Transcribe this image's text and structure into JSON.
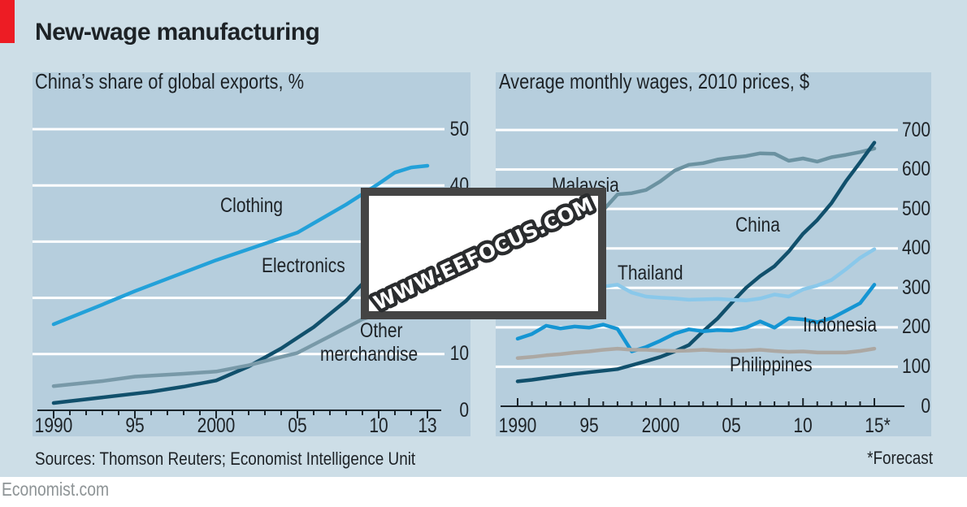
{
  "header": {
    "title": "New-wage manufacturing"
  },
  "watermark": {
    "text": "WWW.EEFOCUS.COM"
  },
  "footer": {
    "sources": "Sources: Thomson Reuters; Economist Intelligence Unit",
    "forecast_note": "*Forecast",
    "site": "Economist.com"
  },
  "colors": {
    "brand_red": "#ed1c24",
    "page_background": "#cddee7",
    "plot_background": "#b6cedd",
    "grid": "#ffffff",
    "axis": "#1a242a",
    "text_dark": "#1d2226",
    "text_gray": "#8e9496",
    "watermark_border": "rgba(5,5,5,0.75)",
    "watermark_outline": "#2a2c2e"
  },
  "chart_data": [
    {
      "type": "line",
      "title": "China’s share of global exports, %",
      "xlabel": "",
      "ylabel": "%",
      "xlim": [
        1988.9,
        2013.9
      ],
      "ylim": [
        0,
        50
      ],
      "grid": true,
      "legend": "inline-labels",
      "xticks": [
        {
          "label": "1990",
          "year": 1990
        },
        {
          "label": "95",
          "year": 1995
        },
        {
          "label": "2000",
          "year": 2000
        },
        {
          "label": "05",
          "year": 2005
        },
        {
          "label": "10",
          "year": 2010
        },
        {
          "label": "13",
          "year": 2013
        }
      ],
      "yticks": [
        0,
        10,
        20,
        30,
        40,
        50
      ],
      "series": [
        {
          "name": "Clothing",
          "color": "#23a1d9",
          "points": [
            [
              1990,
              15.3
            ],
            [
              1993,
              18.8
            ],
            [
              1995,
              21.2
            ],
            [
              2000,
              26.7
            ],
            [
              2005,
              31.6
            ],
            [
              2008,
              36.6
            ],
            [
              2010,
              40.3
            ],
            [
              2011,
              42.3
            ],
            [
              2012,
              43.2
            ],
            [
              2013,
              43.5
            ]
          ]
        },
        {
          "name": "Electronics",
          "color": "#11506c",
          "points": [
            [
              1990,
              1.3
            ],
            [
              1993,
              2.3
            ],
            [
              1996,
              3.3
            ],
            [
              1998,
              4.2
            ],
            [
              2000,
              5.3
            ],
            [
              2002,
              7.8
            ],
            [
              2004,
              11.0
            ],
            [
              2006,
              14.8
            ],
            [
              2008,
              19.5
            ],
            [
              2009,
              22.5
            ],
            [
              2011,
              28.5
            ],
            [
              2013,
              36.0
            ]
          ]
        },
        {
          "name": "Other merchandise",
          "color": "#7899a8",
          "points": [
            [
              1990,
              4.3
            ],
            [
              1993,
              5.2
            ],
            [
              1995,
              6.0
            ],
            [
              1998,
              6.5
            ],
            [
              2000,
              6.9
            ],
            [
              2002,
              8.0
            ],
            [
              2004,
              9.5
            ],
            [
              2005,
              10.2
            ],
            [
              2007,
              13.2
            ],
            [
              2009,
              16.2
            ],
            [
              2011,
              18.0
            ],
            [
              2013,
              19.5
            ]
          ]
        }
      ]
    },
    {
      "type": "line",
      "title": "Average monthly wages, 2010 prices, $",
      "xlabel": "",
      "ylabel": "$",
      "xlim": [
        1988.8,
        2017.0
      ],
      "ylim": [
        0,
        700
      ],
      "grid": true,
      "legend": "inline-labels",
      "forecast_year": 2015,
      "xticks": [
        {
          "label": "1990",
          "year": 1990
        },
        {
          "label": "95",
          "year": 1995
        },
        {
          "label": "2000",
          "year": 2000
        },
        {
          "label": "05",
          "year": 2005
        },
        {
          "label": "10",
          "year": 2010
        },
        {
          "label": "15*",
          "year": 2015
        }
      ],
      "yticks": [
        0,
        100,
        200,
        300,
        400,
        500,
        600,
        700
      ],
      "series": [
        {
          "name": "Malaysia",
          "color": "#6b92a1",
          "points": [
            [
              1990,
              450
            ],
            [
              1992,
              465
            ],
            [
              1994,
              482
            ],
            [
              1996,
              497
            ],
            [
              1997,
              537
            ],
            [
              1998,
              540
            ],
            [
              1999,
              548
            ],
            [
              2000,
              570
            ],
            [
              2001,
              597
            ],
            [
              2002,
              612
            ],
            [
              2003,
              616
            ],
            [
              2004,
              625
            ],
            [
              2005,
              630
            ],
            [
              2006,
              634
            ],
            [
              2007,
              641
            ],
            [
              2008,
              640
            ],
            [
              2009,
              622
            ],
            [
              2010,
              628
            ],
            [
              2011,
              620
            ],
            [
              2012,
              631
            ],
            [
              2013,
              637
            ],
            [
              2014,
              644
            ],
            [
              2015,
              653
            ]
          ]
        },
        {
          "name": "China",
          "color": "#11506c",
          "points": [
            [
              1990,
              63
            ],
            [
              1991,
              67
            ],
            [
              1992,
              72
            ],
            [
              1993,
              77
            ],
            [
              1994,
              82
            ],
            [
              1995,
              86
            ],
            [
              1996,
              90
            ],
            [
              1997,
              94
            ],
            [
              1998,
              104
            ],
            [
              1999,
              114
            ],
            [
              2000,
              125
            ],
            [
              2001,
              139
            ],
            [
              2002,
              155
            ],
            [
              2003,
              190
            ],
            [
              2004,
              222
            ],
            [
              2005,
              262
            ],
            [
              2006,
              300
            ],
            [
              2007,
              330
            ],
            [
              2008,
              355
            ],
            [
              2009,
              392
            ],
            [
              2010,
              437
            ],
            [
              2011,
              472
            ],
            [
              2012,
              515
            ],
            [
              2013,
              570
            ],
            [
              2014,
              618
            ],
            [
              2015,
              668
            ]
          ]
        },
        {
          "name": "Thailand",
          "color": "#8ac8ea",
          "points": [
            [
              1990,
              258
            ],
            [
              1992,
              275
            ],
            [
              1994,
              290
            ],
            [
              1996,
              303
            ],
            [
              1997,
              308
            ],
            [
              1998,
              288
            ],
            [
              1999,
              278
            ],
            [
              2000,
              275
            ],
            [
              2001,
              273
            ],
            [
              2002,
              270
            ],
            [
              2003,
              271
            ],
            [
              2004,
              272
            ],
            [
              2005,
              270
            ],
            [
              2006,
              268
            ],
            [
              2007,
              273
            ],
            [
              2008,
              283
            ],
            [
              2009,
              278
            ],
            [
              2010,
              296
            ],
            [
              2011,
              306
            ],
            [
              2012,
              320
            ],
            [
              2013,
              347
            ],
            [
              2014,
              376
            ],
            [
              2015,
              398
            ]
          ]
        },
        {
          "name": "Indonesia",
          "color": "#1495d3",
          "points": [
            [
              1990,
              171
            ],
            [
              1991,
              183
            ],
            [
              1992,
              204
            ],
            [
              1993,
              197
            ],
            [
              1994,
              202
            ],
            [
              1995,
              199
            ],
            [
              1996,
              207
            ],
            [
              1997,
              196
            ],
            [
              1998,
              139
            ],
            [
              1999,
              150
            ],
            [
              2000,
              166
            ],
            [
              2001,
              184
            ],
            [
              2002,
              195
            ],
            [
              2003,
              190
            ],
            [
              2004,
              193
            ],
            [
              2005,
              192
            ],
            [
              2006,
              199
            ],
            [
              2007,
              215
            ],
            [
              2008,
              199
            ],
            [
              2009,
              223
            ],
            [
              2010,
              220
            ],
            [
              2011,
              213
            ],
            [
              2012,
              223
            ],
            [
              2013,
              242
            ],
            [
              2014,
              261
            ],
            [
              2015,
              308
            ]
          ]
        },
        {
          "name": "Philippines",
          "color": "#aca8a3",
          "points": [
            [
              1990,
              122
            ],
            [
              1991,
              125
            ],
            [
              1992,
              129
            ],
            [
              1993,
              132
            ],
            [
              1994,
              136
            ],
            [
              1995,
              139
            ],
            [
              1996,
              143
            ],
            [
              1997,
              146
            ],
            [
              1998,
              143
            ],
            [
              1999,
              143
            ],
            [
              2000,
              141
            ],
            [
              2001,
              140
            ],
            [
              2002,
              141
            ],
            [
              2003,
              143
            ],
            [
              2004,
              141
            ],
            [
              2005,
              140
            ],
            [
              2006,
              141
            ],
            [
              2007,
              143
            ],
            [
              2008,
              140
            ],
            [
              2009,
              138
            ],
            [
              2010,
              139
            ],
            [
              2011,
              136
            ],
            [
              2012,
              136
            ],
            [
              2013,
              136
            ],
            [
              2014,
              140
            ],
            [
              2015,
              146
            ]
          ]
        }
      ]
    }
  ]
}
